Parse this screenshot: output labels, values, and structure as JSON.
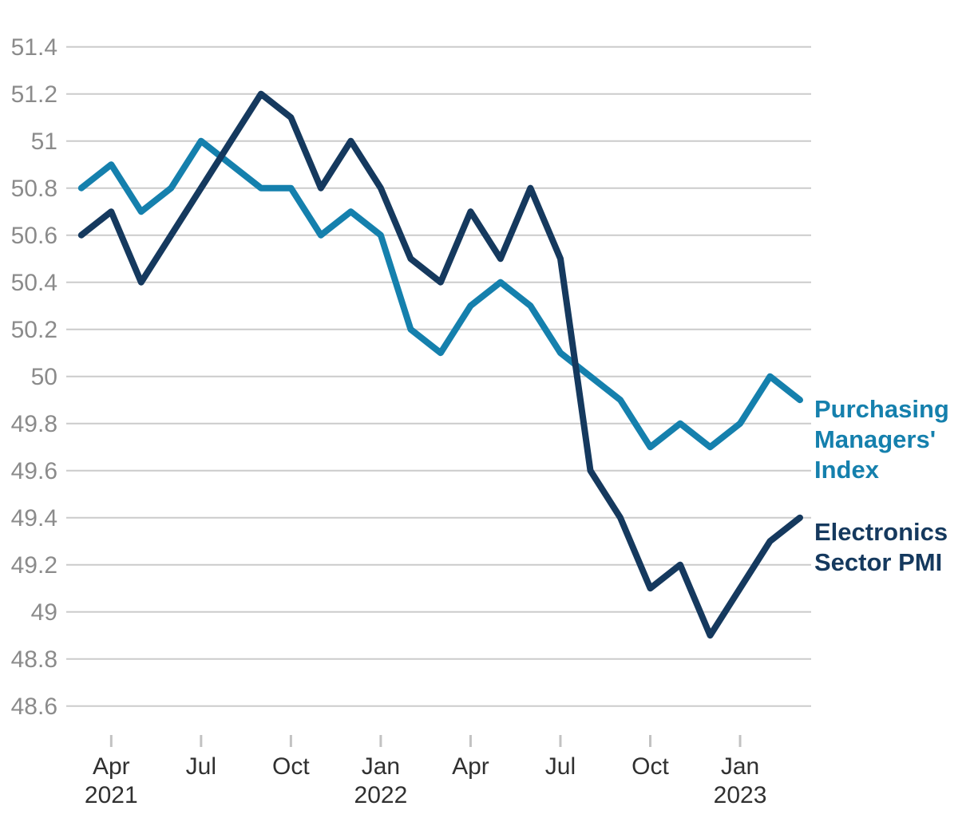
{
  "chart_data": {
    "type": "line",
    "title": "",
    "x_unit": "month",
    "x": [
      "Mar 2021",
      "Apr 2021",
      "May 2021",
      "Jun 2021",
      "Jul 2021",
      "Aug 2021",
      "Sep 2021",
      "Oct 2021",
      "Nov 2021",
      "Dec 2021",
      "Jan 2022",
      "Feb 2022",
      "Mar 2022",
      "Apr 2022",
      "May 2022",
      "Jun 2022",
      "Jul 2022",
      "Aug 2022",
      "Sep 2022",
      "Oct 2022",
      "Nov 2022",
      "Dec 2022",
      "Jan 2023",
      "Feb 2023",
      "Mar 2023"
    ],
    "series": [
      {
        "name": "Purchasing Managers' Index",
        "color": "#1580ad",
        "values": [
          50.8,
          50.9,
          50.7,
          50.8,
          51.0,
          50.9,
          50.8,
          50.8,
          50.6,
          50.7,
          50.6,
          50.2,
          50.1,
          50.3,
          50.4,
          50.3,
          50.1,
          50.0,
          49.9,
          49.7,
          49.8,
          49.7,
          49.8,
          50.0,
          49.9
        ]
      },
      {
        "name": "Electronics Sector PMI",
        "color": "#15395e",
        "values": [
          50.6,
          50.7,
          50.4,
          50.6,
          50.8,
          51.0,
          51.2,
          51.1,
          50.8,
          51.0,
          50.8,
          50.5,
          50.4,
          50.7,
          50.5,
          50.8,
          50.5,
          49.6,
          49.4,
          49.1,
          49.2,
          48.9,
          49.1,
          49.3,
          49.4
        ]
      }
    ],
    "y_ticks": [
      "51.4",
      "51.2",
      "51",
      "50.8",
      "50.6",
      "50.4",
      "50.2",
      "50",
      "49.8",
      "49.6",
      "49.4",
      "49.2",
      "49",
      "48.8",
      "48.6"
    ],
    "x_ticks": [
      {
        "line1": "Apr",
        "line2": "2021",
        "month_index": 1
      },
      {
        "line1": "Jul",
        "line2": "",
        "month_index": 4
      },
      {
        "line1": "Oct",
        "line2": "",
        "month_index": 7
      },
      {
        "line1": "Jan",
        "line2": "2022",
        "month_index": 10
      },
      {
        "line1": "Apr",
        "line2": "",
        "month_index": 13
      },
      {
        "line1": "Jul",
        "line2": "",
        "month_index": 16
      },
      {
        "line1": "Oct",
        "line2": "",
        "month_index": 19
      },
      {
        "line1": "Jan",
        "line2": "2023",
        "month_index": 22
      }
    ],
    "ylim": [
      48.6,
      51.4
    ],
    "grid": true,
    "legend_position": "right-of-lines",
    "colors": {
      "grid": "#cbcbcb",
      "tick_mark": "#c2c2c2",
      "y_tick_label": "#8b8b8b",
      "x_tick_label": "#303030",
      "background": "#ffffff"
    }
  }
}
